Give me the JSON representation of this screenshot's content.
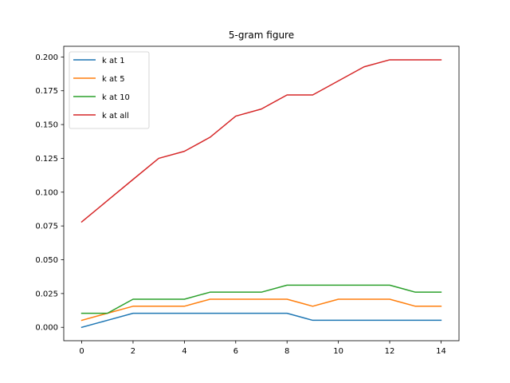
{
  "chart_data": {
    "type": "line",
    "title": "5-gram figure",
    "xlabel": "",
    "ylabel": "",
    "xlim": [
      -0.7,
      14.7
    ],
    "ylim": [
      -0.0099,
      0.2079
    ],
    "x_ticks": [
      0,
      2,
      4,
      6,
      8,
      10,
      12,
      14
    ],
    "y_ticks": [
      0.0,
      0.025,
      0.05,
      0.075,
      0.1,
      0.125,
      0.15,
      0.175,
      0.2
    ],
    "y_tick_labels": [
      "0.000",
      "0.025",
      "0.050",
      "0.075",
      "0.100",
      "0.125",
      "0.150",
      "0.175",
      "0.200"
    ],
    "grid": false,
    "legend_position": "top-left",
    "x": [
      0,
      1,
      2,
      3,
      4,
      5,
      6,
      7,
      8,
      9,
      10,
      11,
      12,
      13,
      14
    ],
    "series": [
      {
        "name": "k at 1",
        "color": "#1f77b4",
        "values": [
          0.0,
          0.0052,
          0.0104,
          0.0104,
          0.0104,
          0.0104,
          0.0104,
          0.0104,
          0.0104,
          0.0052,
          0.0052,
          0.0052,
          0.0052,
          0.0052,
          0.0052
        ]
      },
      {
        "name": "k at 5",
        "color": "#ff7f0e",
        "values": [
          0.0052,
          0.0104,
          0.0156,
          0.0156,
          0.0156,
          0.0208,
          0.0208,
          0.0208,
          0.0208,
          0.0156,
          0.0208,
          0.0208,
          0.0208,
          0.0156,
          0.0156
        ]
      },
      {
        "name": "k at 10",
        "color": "#2ca02c",
        "values": [
          0.0104,
          0.0104,
          0.0208,
          0.0208,
          0.0208,
          0.026,
          0.026,
          0.026,
          0.0312,
          0.0312,
          0.0312,
          0.0312,
          0.0312,
          0.026,
          0.026
        ]
      },
      {
        "name": "k at all",
        "color": "#d62728",
        "values": [
          0.078,
          0.0937,
          0.1094,
          0.125,
          0.1302,
          0.1406,
          0.1562,
          0.1615,
          0.1719,
          0.1719,
          0.1823,
          0.1927,
          0.1979,
          0.1979,
          0.1979
        ]
      }
    ]
  }
}
